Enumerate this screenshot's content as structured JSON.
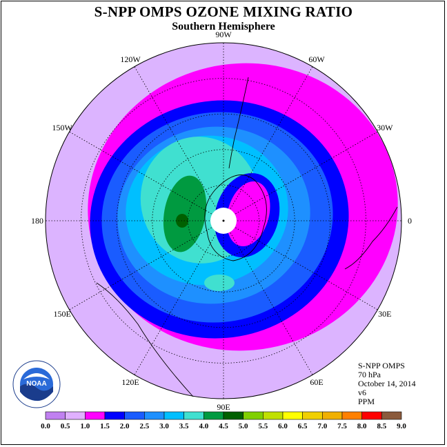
{
  "title": "S-NPP OMPS OZONE MIXING RATIO",
  "subtitle": "Southern Hemisphere",
  "longitude_labels": [
    {
      "text": "90W",
      "lon": -90
    },
    {
      "text": "60W",
      "lon": -60
    },
    {
      "text": "30W",
      "lon": -30
    },
    {
      "text": "0",
      "lon": 0
    },
    {
      "text": "30E",
      "lon": 30
    },
    {
      "text": "60E",
      "lon": 60
    },
    {
      "text": "90E",
      "lon": 90
    },
    {
      "text": "120E",
      "lon": 120
    },
    {
      "text": "150E",
      "lon": 150
    },
    {
      "text": "180",
      "lon": 180
    },
    {
      "text": "150W",
      "lon": -150
    },
    {
      "text": "120W",
      "lon": -120
    }
  ],
  "info": {
    "instrument": "S-NPP OMPS",
    "level": "70 hPa",
    "date": "October 14, 2014",
    "version": "v6",
    "units": "PPM"
  },
  "logo_text": "NOAA",
  "colorbar": {
    "ticks": [
      "0.0",
      "0.5",
      "1.0",
      "1.5",
      "2.0",
      "2.5",
      "3.0",
      "3.5",
      "4.0",
      "4.5",
      "5.0",
      "5.5",
      "6.0",
      "6.5",
      "7.0",
      "7.5",
      "8.0",
      "8.5",
      "9.0"
    ],
    "colors": [
      "#c080f0",
      "#e0b0ff",
      "#ff00ff",
      "#0000ff",
      "#1a5cff",
      "#1e90ff",
      "#00bfff",
      "#40e0d0",
      "#009a40",
      "#006000",
      "#80d000",
      "#c0e000",
      "#ffff00",
      "#f0d000",
      "#f0b000",
      "#ff8000",
      "#ff0000",
      "#8b5a3c"
    ]
  },
  "legend_colors": {
    "0.5-1.0": "#dcb4ff",
    "1.0-1.5": "#ff00ff",
    "1.5-2.0": "#0000ff",
    "2.0-2.5": "#1a5cff",
    "2.5-3.0": "#1e90ff",
    "3.0-3.5": "#00bfff",
    "3.5-4.0": "#40e0d0",
    "4.0-4.5": "#009a40",
    "4.5-5.0": "#006000"
  }
}
